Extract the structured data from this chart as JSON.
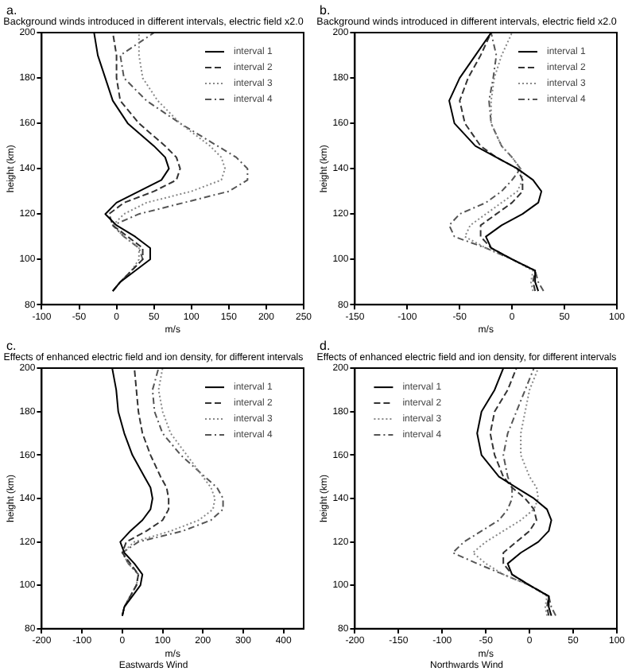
{
  "chart_data": [
    {
      "type": "line",
      "title": "Background winds introduced in different intervals, electric field x2.0",
      "xlabel": "m/s",
      "ylabel": "height (km)",
      "annotations": [
        "a."
      ],
      "xlim": [
        -100,
        250
      ],
      "xticks": [
        -100,
        -50,
        0,
        50,
        100,
        150,
        200,
        250
      ],
      "ylim": [
        80,
        200
      ],
      "yticks": [
        80,
        100,
        120,
        140,
        160,
        180,
        200
      ],
      "grid": false,
      "legend": "top right",
      "marker": "none",
      "series": [
        {
          "name": "interval 1",
          "color": "#000000",
          "line_style": "solid",
          "x": [
            -5,
            5,
            25,
            45,
            45,
            25,
            0,
            -15,
            0,
            30,
            60,
            70,
            65,
            50,
            15,
            -5,
            -15,
            -25,
            -30
          ],
          "values": [
            86,
            90,
            95,
            100,
            105,
            110,
            115,
            120,
            125,
            130,
            135,
            140,
            145,
            150,
            160,
            170,
            180,
            190,
            200
          ]
        },
        {
          "name": "interval 2",
          "color": "#333333",
          "line_style": "dashed",
          "x": [
            -5,
            5,
            20,
            35,
            35,
            15,
            -5,
            -10,
            10,
            50,
            80,
            85,
            80,
            65,
            30,
            5,
            0,
            0,
            -5
          ],
          "values": [
            86,
            90,
            95,
            100,
            105,
            110,
            115,
            120,
            125,
            130,
            135,
            140,
            145,
            150,
            160,
            170,
            180,
            190,
            200
          ]
        },
        {
          "name": "interval 3",
          "color": "#888888",
          "line_style": "dotted",
          "x": [
            -5,
            5,
            20,
            30,
            30,
            10,
            -5,
            10,
            40,
            100,
            140,
            145,
            140,
            125,
            85,
            55,
            35,
            30,
            30
          ],
          "values": [
            86,
            90,
            95,
            100,
            105,
            110,
            115,
            120,
            125,
            130,
            135,
            140,
            145,
            150,
            160,
            170,
            180,
            190,
            200
          ]
        },
        {
          "name": "interval 4",
          "color": "#555555",
          "line_style": "dashdot",
          "x": [
            -5,
            5,
            20,
            35,
            30,
            10,
            -5,
            30,
            90,
            150,
            175,
            175,
            160,
            135,
            85,
            40,
            10,
            5,
            50
          ],
          "values": [
            86,
            90,
            95,
            100,
            105,
            110,
            115,
            120,
            125,
            130,
            135,
            140,
            145,
            150,
            160,
            170,
            180,
            190,
            200
          ]
        }
      ]
    },
    {
      "type": "line",
      "title": "Background winds introduced in different intervals, electric field x2.0",
      "xlabel": "m/s",
      "ylabel": "height (km)",
      "annotations": [
        "b."
      ],
      "xlim": [
        -150,
        100
      ],
      "xticks": [
        -150,
        -100,
        -50,
        0,
        50,
        100
      ],
      "ylim": [
        80,
        200
      ],
      "yticks": [
        80,
        100,
        120,
        140,
        160,
        180,
        200
      ],
      "grid": false,
      "legend": "top right",
      "marker": "none",
      "series": [
        {
          "name": "interval 1",
          "color": "#000000",
          "line_style": "solid",
          "x": [
            25,
            22,
            22,
            0,
            -20,
            -25,
            -10,
            10,
            25,
            28,
            20,
            5,
            -15,
            -35,
            -55,
            -60,
            -50,
            -35,
            -20
          ],
          "values": [
            86,
            90,
            95,
            100,
            105,
            110,
            115,
            120,
            125,
            130,
            135,
            140,
            145,
            150,
            160,
            170,
            180,
            190,
            200
          ]
        },
        {
          "name": "interval 2",
          "color": "#333333",
          "line_style": "dashed",
          "x": [
            22,
            20,
            22,
            0,
            -20,
            -30,
            -30,
            -15,
            0,
            10,
            10,
            5,
            -15,
            -30,
            -45,
            -50,
            -42,
            -30,
            -20
          ],
          "values": [
            86,
            90,
            95,
            100,
            105,
            110,
            115,
            120,
            125,
            130,
            135,
            140,
            145,
            150,
            160,
            170,
            180,
            190,
            200
          ]
        },
        {
          "name": "interval 3",
          "color": "#888888",
          "line_style": "dotted",
          "x": [
            20,
            18,
            20,
            0,
            -25,
            -45,
            -40,
            -25,
            -10,
            5,
            10,
            8,
            0,
            -10,
            -20,
            -20,
            -17,
            -10,
            0
          ],
          "values": [
            86,
            90,
            95,
            100,
            105,
            110,
            115,
            120,
            125,
            130,
            135,
            140,
            145,
            150,
            160,
            170,
            180,
            190,
            200
          ]
        },
        {
          "name": "interval 4",
          "color": "#555555",
          "line_style": "dashdot",
          "x": [
            30,
            25,
            22,
            0,
            -25,
            -55,
            -60,
            -50,
            -25,
            -10,
            0,
            8,
            0,
            -10,
            -20,
            -22,
            -18,
            -15,
            -20
          ],
          "values": [
            86,
            90,
            95,
            100,
            105,
            110,
            115,
            120,
            125,
            130,
            135,
            140,
            145,
            150,
            160,
            170,
            180,
            190,
            200
          ]
        }
      ]
    },
    {
      "type": "line",
      "title": "Effects of enhanced electric field and ion density, for different intervals",
      "xlabel": "m/s",
      "ylabel": "height (km)",
      "annotations": [
        "c.",
        "Eastwards Wind"
      ],
      "xlim": [
        -200,
        450
      ],
      "xticks": [
        -200,
        -100,
        0,
        100,
        200,
        300,
        400
      ],
      "ylim": [
        80,
        200
      ],
      "yticks": [
        80,
        100,
        120,
        140,
        160,
        180,
        200
      ],
      "grid": false,
      "legend": "top right",
      "marker": "none",
      "series": [
        {
          "name": "interval 1",
          "color": "#000000",
          "line_style": "solid",
          "x": [
            0,
            5,
            25,
            45,
            50,
            30,
            5,
            -5,
            20,
            50,
            70,
            75,
            70,
            55,
            25,
            5,
            -10,
            -15,
            -25
          ],
          "values": [
            86,
            90,
            95,
            100,
            105,
            110,
            115,
            120,
            125,
            130,
            135,
            140,
            145,
            150,
            160,
            170,
            180,
            190,
            200
          ]
        },
        {
          "name": "interval 2",
          "color": "#333333",
          "line_style": "dashed",
          "x": [
            0,
            5,
            20,
            35,
            40,
            20,
            0,
            10,
            60,
            100,
            115,
            115,
            110,
            95,
            70,
            50,
            40,
            35,
            30
          ],
          "values": [
            86,
            90,
            95,
            100,
            105,
            110,
            115,
            120,
            125,
            130,
            135,
            140,
            145,
            150,
            160,
            170,
            180,
            190,
            200
          ]
        },
        {
          "name": "interval 3",
          "color": "#888888",
          "line_style": "dotted",
          "x": [
            0,
            5,
            20,
            35,
            40,
            15,
            0,
            30,
            120,
            190,
            225,
            230,
            220,
            200,
            160,
            120,
            100,
            90,
            100
          ],
          "values": [
            86,
            90,
            95,
            100,
            105,
            110,
            115,
            120,
            125,
            130,
            135,
            140,
            145,
            150,
            160,
            170,
            180,
            190,
            200
          ]
        },
        {
          "name": "interval 4",
          "color": "#555555",
          "line_style": "dashdot",
          "x": [
            0,
            5,
            20,
            35,
            40,
            15,
            0,
            40,
            150,
            220,
            250,
            250,
            235,
            205,
            145,
            100,
            80,
            75,
            90
          ],
          "values": [
            86,
            90,
            95,
            100,
            105,
            110,
            115,
            120,
            125,
            130,
            135,
            140,
            145,
            150,
            160,
            170,
            180,
            190,
            200
          ]
        }
      ]
    },
    {
      "type": "line",
      "title": "Effects of enhanced electric field and ion density, for different intervals",
      "xlabel": "m/s",
      "ylabel": "height (km)",
      "annotations": [
        "d.",
        "Northwards Wind"
      ],
      "xlim": [
        -200,
        100
      ],
      "xticks": [
        -200,
        -150,
        -100,
        -50,
        0,
        50,
        100
      ],
      "ylim": [
        80,
        200
      ],
      "yticks": [
        80,
        100,
        120,
        140,
        160,
        180,
        200
      ],
      "grid": false,
      "legend": "top left",
      "marker": "none",
      "series": [
        {
          "name": "interval 1",
          "color": "#000000",
          "line_style": "solid",
          "x": [
            25,
            22,
            22,
            0,
            -20,
            -25,
            -10,
            10,
            22,
            25,
            20,
            5,
            -15,
            -35,
            -55,
            -60,
            -55,
            -40,
            -30
          ],
          "values": [
            86,
            90,
            95,
            100,
            105,
            110,
            115,
            120,
            125,
            130,
            135,
            140,
            145,
            150,
            160,
            170,
            180,
            190,
            200
          ]
        },
        {
          "name": "interval 2",
          "color": "#333333",
          "line_style": "dashed",
          "x": [
            22,
            20,
            22,
            0,
            -20,
            -30,
            -30,
            -15,
            0,
            8,
            5,
            -5,
            -20,
            -30,
            -40,
            -45,
            -40,
            -25,
            -15
          ],
          "values": [
            86,
            90,
            95,
            100,
            105,
            110,
            115,
            120,
            125,
            130,
            135,
            140,
            145,
            150,
            160,
            170,
            180,
            190,
            200
          ]
        },
        {
          "name": "interval 3",
          "color": "#888888",
          "line_style": "dotted",
          "x": [
            20,
            18,
            20,
            0,
            -30,
            -50,
            -65,
            -50,
            -30,
            -10,
            5,
            10,
            8,
            0,
            -10,
            -10,
            -5,
            0,
            10
          ],
          "values": [
            86,
            90,
            95,
            100,
            105,
            110,
            115,
            120,
            125,
            130,
            135,
            140,
            145,
            150,
            160,
            170,
            180,
            190,
            200
          ]
        },
        {
          "name": "interval 4",
          "color": "#555555",
          "line_style": "dashdot",
          "x": [
            30,
            25,
            22,
            0,
            -30,
            -60,
            -88,
            -75,
            -55,
            -35,
            -25,
            -20,
            -20,
            -25,
            -30,
            -25,
            -15,
            -5,
            5
          ],
          "values": [
            86,
            90,
            95,
            100,
            105,
            110,
            115,
            120,
            125,
            130,
            135,
            140,
            145,
            150,
            160,
            170,
            180,
            190,
            200
          ]
        }
      ]
    }
  ]
}
